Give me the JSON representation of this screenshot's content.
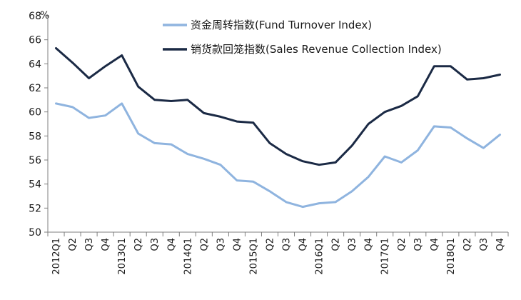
{
  "chart_data": {
    "type": "line",
    "unit": "%",
    "ylim": [
      50,
      68
    ],
    "yticks": [
      50,
      52,
      54,
      56,
      58,
      60,
      62,
      64,
      66,
      68
    ],
    "categories": [
      "2012Q1",
      "Q2",
      "Q3",
      "Q4",
      "2013Q1",
      "Q2",
      "Q3",
      "Q4",
      "2014Q1",
      "Q2",
      "Q3",
      "Q4",
      "2015Q1",
      "Q2",
      "Q3",
      "Q4",
      "2016Q1",
      "Q2",
      "Q3",
      "Q4",
      "2017Q1",
      "Q2",
      "Q3",
      "Q4",
      "2018Q1",
      "Q2",
      "Q3",
      "Q4"
    ],
    "legend_position": "top-right",
    "grid": false,
    "series": [
      {
        "name": "资金周转指数(Fund Turnover Index)",
        "color": "#8fb4df",
        "values": [
          60.7,
          60.4,
          59.5,
          59.7,
          60.7,
          58.2,
          57.4,
          57.3,
          56.5,
          56.1,
          55.6,
          54.3,
          54.2,
          53.4,
          52.5,
          52.1,
          52.4,
          52.5,
          53.4,
          54.6,
          56.3,
          55.8,
          56.8,
          58.8,
          58.7,
          57.8,
          57.0,
          58.1
        ]
      },
      {
        "name": "销货款回笼指数(Sales Revenue Collection Index)",
        "color": "#1b2a45",
        "values": [
          65.3,
          64.1,
          62.8,
          63.8,
          64.7,
          62.1,
          61.0,
          60.9,
          61.0,
          59.9,
          59.6,
          59.2,
          59.1,
          57.4,
          56.5,
          55.9,
          55.6,
          55.8,
          57.2,
          59.0,
          60.0,
          60.5,
          61.3,
          63.8,
          63.8,
          62.7,
          62.8,
          63.1
        ]
      }
    ]
  }
}
